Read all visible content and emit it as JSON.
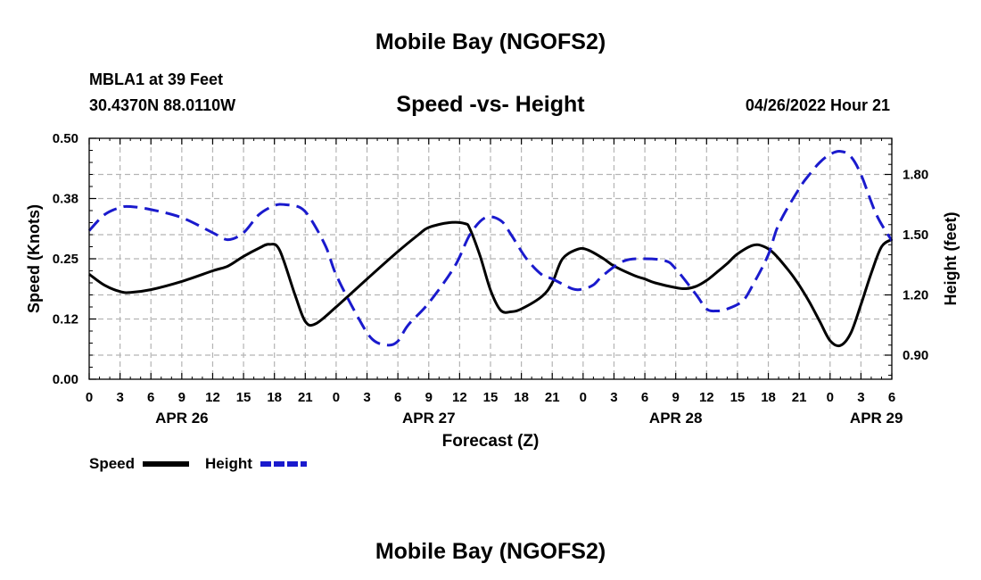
{
  "page_title": "Mobile Bay (NGOFS2)",
  "footer_title": "Mobile Bay (NGOFS2)",
  "station": "MBLA1 at 39 Feet",
  "coordinates": "30.4370N  88.0110W",
  "date_label": "04/26/2022 Hour 21",
  "colors": {
    "speed": "#000000",
    "height": "#1a1acd",
    "grid": "#b4b4b4"
  },
  "chart_data": {
    "type": "line",
    "title": "Speed -vs- Height",
    "xlabel": "Forecast (Z)",
    "ylabel_left": "Speed (Knots)",
    "ylabel_right": "Height (feet)",
    "x_range_hours": [
      0,
      78
    ],
    "x_tick_labels": [
      "0",
      "3",
      "6",
      "9",
      "12",
      "15",
      "18",
      "21",
      "0",
      "3",
      "6",
      "9",
      "12",
      "15",
      "18",
      "21",
      "0",
      "3",
      "6",
      "9",
      "12",
      "15",
      "18",
      "21",
      "0",
      "3",
      "6"
    ],
    "date_labels": [
      {
        "hour": 9,
        "label": "APR 26"
      },
      {
        "hour": 33,
        "label": "APR 27"
      },
      {
        "hour": 57,
        "label": "APR 28"
      },
      {
        "hour": 76.5,
        "label": "APR 29"
      }
    ],
    "y_left": {
      "min": 0,
      "max": 0.5,
      "ticks": [
        0.0,
        0.125,
        0.25,
        0.375,
        0.5
      ],
      "tick_labels": [
        "0.00",
        "0.12",
        "0.25",
        "0.38",
        "0.50"
      ]
    },
    "y_right": {
      "min": 0.78,
      "max": 1.98,
      "ticks": [
        0.9,
        1.2,
        1.5,
        1.8
      ],
      "tick_labels": [
        "0.90",
        "1.20",
        "1.50",
        "1.80"
      ]
    },
    "legend": {
      "placement": "bottom-left",
      "items": [
        "Speed",
        "Height"
      ]
    },
    "series": [
      {
        "name": "Speed",
        "axis": "left",
        "style": "solid",
        "x": [
          0,
          1.5,
          3,
          4,
          6,
          9,
          12,
          13.5,
          15,
          16.5,
          17.5,
          18.5,
          20,
          21,
          22,
          24,
          27,
          30,
          32,
          33,
          35,
          36.5,
          37,
          38,
          39,
          40,
          41,
          42,
          44,
          45,
          46,
          47.5,
          48.5,
          50,
          51,
          53,
          54,
          55,
          57,
          58,
          59,
          60,
          61,
          62,
          63,
          64.5,
          65.5,
          66.5,
          68,
          69,
          70,
          71,
          72,
          73,
          74,
          75,
          76,
          77,
          78
        ],
        "y": [
          0.218,
          0.195,
          0.182,
          0.18,
          0.186,
          0.203,
          0.225,
          0.235,
          0.255,
          0.272,
          0.28,
          0.268,
          0.175,
          0.12,
          0.115,
          0.15,
          0.208,
          0.265,
          0.3,
          0.315,
          0.325,
          0.323,
          0.312,
          0.255,
          0.185,
          0.143,
          0.14,
          0.146,
          0.172,
          0.2,
          0.25,
          0.27,
          0.268,
          0.25,
          0.235,
          0.215,
          0.208,
          0.2,
          0.19,
          0.188,
          0.193,
          0.205,
          0.222,
          0.24,
          0.26,
          0.278,
          0.276,
          0.262,
          0.225,
          0.195,
          0.16,
          0.12,
          0.08,
          0.07,
          0.095,
          0.155,
          0.22,
          0.275,
          0.29
        ]
      },
      {
        "name": "Height",
        "axis": "right",
        "style": "dashed",
        "x": [
          0,
          1.5,
          3,
          4,
          6,
          9,
          12,
          13.5,
          15,
          16.5,
          18,
          19,
          20.5,
          21.5,
          23,
          24,
          26,
          27.5,
          29,
          30,
          31,
          33,
          35.5,
          37,
          38.5,
          40,
          41,
          42.5,
          44,
          45,
          47,
          48,
          49,
          50,
          52,
          54,
          56,
          57,
          59,
          60,
          61,
          62,
          63.5,
          64.5,
          66,
          67,
          69,
          70,
          71,
          72,
          73,
          74,
          75,
          76.5,
          78
        ],
        "y": [
          1.52,
          1.6,
          1.635,
          1.64,
          1.625,
          1.585,
          1.51,
          1.475,
          1.51,
          1.6,
          1.645,
          1.65,
          1.635,
          1.58,
          1.44,
          1.3,
          1.1,
          0.98,
          0.95,
          0.97,
          1.05,
          1.16,
          1.34,
          1.5,
          1.585,
          1.57,
          1.5,
          1.38,
          1.3,
          1.28,
          1.23,
          1.23,
          1.25,
          1.3,
          1.37,
          1.38,
          1.37,
          1.33,
          1.2,
          1.13,
          1.12,
          1.13,
          1.17,
          1.25,
          1.4,
          1.55,
          1.73,
          1.8,
          1.86,
          1.9,
          1.915,
          1.89,
          1.8,
          1.6,
          1.47
        ]
      }
    ]
  }
}
